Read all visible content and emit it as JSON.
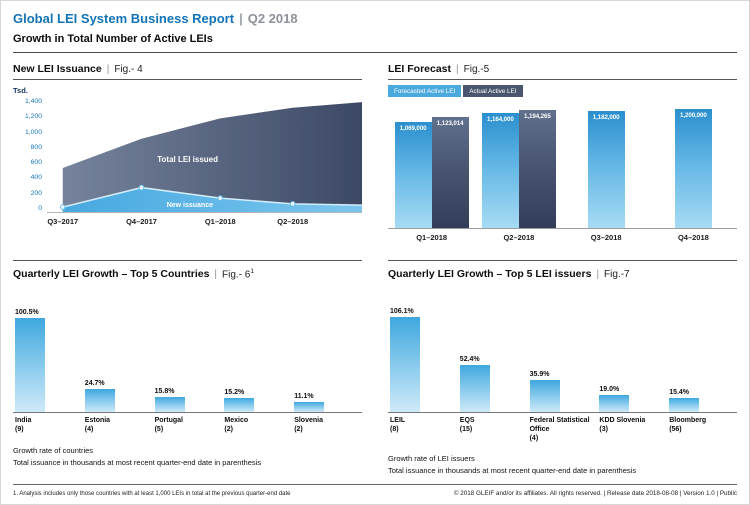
{
  "page": {
    "title": "Global LEI System Business Report",
    "sep": "|",
    "period": "Q2 2018",
    "subtitle": "Growth in Total Number of Active LEIs",
    "footnote": "1. Analysis includes only those countries with at least 1,000 LEIs in total at the previous quarter-end date",
    "copyright": "© 2018 GLEIF and/or its affiliates. All rights reserved.  |  Release date 2018-08-08  |  Version 1.0  |  Public"
  },
  "colors": {
    "brand_blue": "#1274b7",
    "light_blue": "#3fa8df",
    "dark_slate": "#3c4965",
    "axis_label_blue": "#1476b8"
  },
  "fig4": {
    "title": "New LEI Issuance",
    "fig": "Fig.- 4"
  },
  "fig5": {
    "title": "LEI Forecast",
    "fig": "Fig.-5"
  },
  "fig6": {
    "title": "Quarterly LEI Growth – Top 5 Countries",
    "fig": "Fig.- 6",
    "fig_sup": "1",
    "caption1": "Growth rate of countries",
    "caption2": "Total issuance in thousands at most recent quarter-end date in parenthesis"
  },
  "fig7": {
    "title": "Quarterly LEI Growth – Top 5 LEI issuers",
    "fig": "Fig.-7",
    "caption1": "Growth rate of LEI issuers",
    "caption2": "Total issuance in thousands at most recent quarter-end date in parenthesis"
  },
  "chart_data": [
    {
      "id": "fig4",
      "type": "area",
      "title": "New LEI Issuance",
      "ylabel": "Tsd.",
      "categories": [
        "Q3–2017",
        "Q4–2017",
        "Q1–2018",
        "Q2–2018"
      ],
      "series": [
        {
          "name": "Total LEI issued",
          "values": [
            540,
            900,
            1150,
            1280
          ]
        },
        {
          "name": "New issuance",
          "values": [
            60,
            300,
            170,
            100
          ]
        }
      ],
      "ylim": [
        0,
        1400
      ],
      "yticks": [
        "1,400",
        "1,200",
        "1,000",
        "800",
        "600",
        "400",
        "200",
        "0"
      ],
      "grid": false
    },
    {
      "id": "fig5",
      "type": "bar",
      "title": "LEI Forecast",
      "categories": [
        "Q1–2018",
        "Q2–2018",
        "Q3–2018",
        "Q4–2018"
      ],
      "series": [
        {
          "name": "Forecasted Active LEI",
          "values": [
            1069000,
            1164000,
            1182000,
            1200000
          ]
        },
        {
          "name": "Actual Active LEI",
          "values": [
            1123014,
            1194265,
            null,
            null
          ]
        }
      ],
      "labels": [
        [
          "1,069,000",
          "1,164,000",
          "1,182,000",
          "1,200,000"
        ],
        [
          "1,123,014",
          "1,194,265",
          null,
          null
        ]
      ],
      "ylim": [
        0,
        1250000
      ],
      "legend_position": "top-left",
      "grid": false
    },
    {
      "id": "fig6",
      "type": "bar",
      "title": "Quarterly LEI Growth – Top 5 Countries",
      "categories": [
        "India",
        "Estonia",
        "Portugal",
        "Mexico",
        "Slovenia"
      ],
      "counts": [
        "(9)",
        "(4)",
        "(5)",
        "(2)",
        "(2)"
      ],
      "values": [
        100.5,
        24.7,
        15.8,
        15.2,
        11.1
      ],
      "labels": [
        "100.5%",
        "24.7%",
        "15.8%",
        "15.2%",
        "11.1%"
      ],
      "ylim": [
        0,
        115
      ],
      "grid": false
    },
    {
      "id": "fig7",
      "type": "bar",
      "title": "Quarterly LEI Growth – Top 5 LEI issuers",
      "categories": [
        "LEIL",
        "EQS",
        "Federal Statistical Office",
        "KDD Slovenia",
        "Bloomberg"
      ],
      "counts": [
        "(8)",
        "(15)",
        "(4)",
        "(3)",
        "(56)"
      ],
      "values": [
        106.1,
        52.4,
        35.9,
        19.0,
        15.4
      ],
      "labels": [
        "106.1%",
        "52.4%",
        "35.9%",
        "19.0%",
        "15.4%"
      ],
      "ylim": [
        0,
        120
      ],
      "grid": false
    }
  ]
}
